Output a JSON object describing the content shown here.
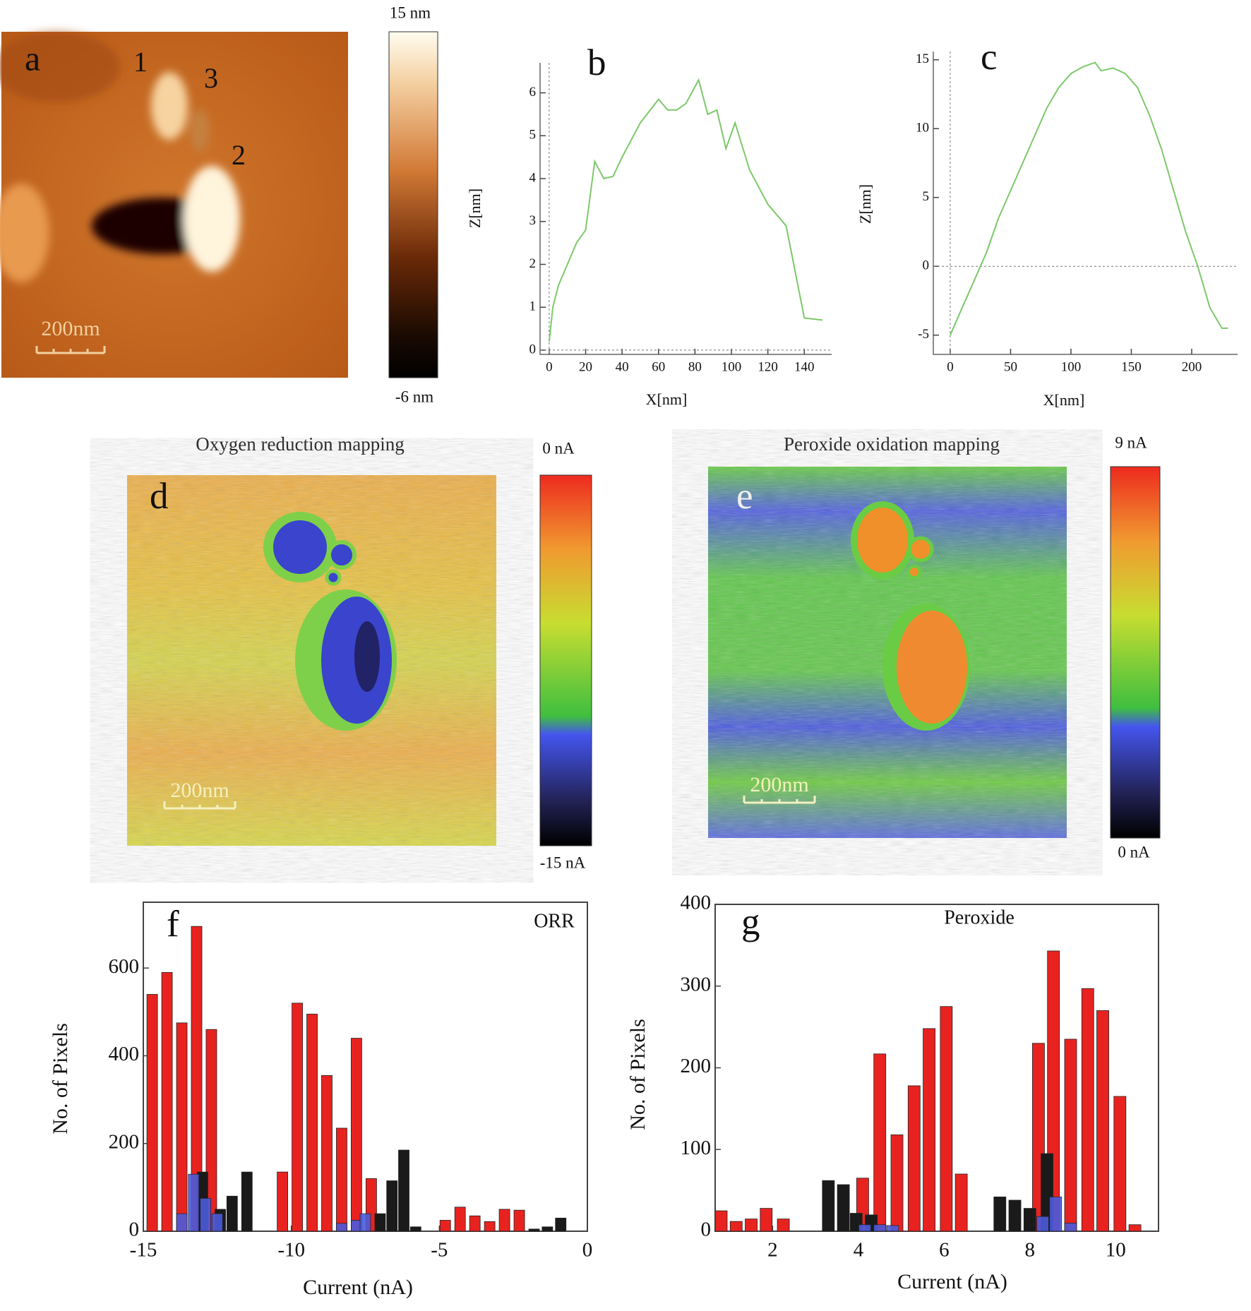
{
  "chart_data": [
    {
      "type": "image",
      "panel": "a",
      "annotations": [
        "1",
        "3",
        "2"
      ],
      "scale_bar": "200nm",
      "colorbar": {
        "top": "15 nm",
        "bottom": "-6 nm"
      }
    },
    {
      "type": "line",
      "panel": "b",
      "color": "#7cc86a",
      "x": [
        0,
        2,
        5,
        10,
        15,
        20,
        25,
        30,
        35,
        40,
        50,
        60,
        65,
        70,
        75,
        82,
        87,
        92,
        97,
        102,
        110,
        120,
        130,
        140,
        150
      ],
      "values": [
        0.2,
        1,
        1.5,
        2,
        2.5,
        2.8,
        4.4,
        4.0,
        4.05,
        4.5,
        5.3,
        5.85,
        5.6,
        5.6,
        5.75,
        6.3,
        5.5,
        5.6,
        4.7,
        5.3,
        4.2,
        3.4,
        2.9,
        0.75,
        0.7
      ],
      "xlim": [
        -5,
        155
      ],
      "ylim": [
        -0.1,
        6.7
      ],
      "xticks": [
        0,
        20,
        40,
        60,
        80,
        100,
        120,
        140
      ],
      "yticks": [
        0,
        1,
        2,
        3,
        4,
        5,
        6
      ],
      "xlabel": "X[nm]",
      "ylabel": "Z[nm]"
    },
    {
      "type": "line",
      "panel": "c",
      "color": "#7cc86a",
      "x": [
        0,
        10,
        20,
        30,
        40,
        50,
        60,
        70,
        80,
        90,
        100,
        110,
        120,
        125,
        135,
        145,
        155,
        165,
        175,
        185,
        195,
        205,
        215,
        225,
        230
      ],
      "values": [
        -5,
        -3,
        -1,
        1,
        3.5,
        5.5,
        7.5,
        9.5,
        11.5,
        13,
        14,
        14.5,
        14.8,
        14.2,
        14.4,
        14,
        13,
        11,
        8.5,
        5.5,
        2.5,
        0,
        -3,
        -4.5,
        -4.5
      ],
      "xlim": [
        -14,
        238
      ],
      "ylim": [
        -6.4,
        15.6
      ],
      "xticks": [
        0,
        50,
        100,
        150,
        200
      ],
      "yticks": [
        -5,
        0,
        5,
        10,
        15
      ],
      "xlabel": "X[nm]",
      "ylabel": "Z[nm]"
    },
    {
      "type": "image",
      "panel": "d",
      "title": "Oxygen reduction mapping",
      "scale_bar": "200nm",
      "colorbar": {
        "top": "0 nA",
        "bottom": "-15 nA"
      }
    },
    {
      "type": "image",
      "panel": "e",
      "title": "Peroxide oxidation mapping",
      "scale_bar": "200nm",
      "colorbar": {
        "top": "9 nA",
        "bottom": "0 nA"
      }
    },
    {
      "type": "bar",
      "panel": "f",
      "annotation": "ORR",
      "series": [
        {
          "color": "#e8231f",
          "x": [
            -14.7,
            -14.2,
            -13.7,
            -13.2,
            -12.7,
            -10.3,
            -9.8,
            -9.3,
            -8.8,
            -8.3,
            -7.8,
            -7.3,
            -4.8,
            -4.3,
            -3.8,
            -3.3,
            -2.8,
            -2.3
          ],
          "values": [
            540,
            590,
            475,
            695,
            460,
            135,
            520,
            495,
            355,
            235,
            440,
            120,
            25,
            55,
            35,
            22,
            50,
            48
          ]
        },
        {
          "color": "#1a1a1a",
          "x": [
            -13.0,
            -12.4,
            -12.0,
            -11.5,
            -7.0,
            -6.6,
            -6.2,
            -5.8,
            -1.8,
            -1.35,
            -0.9
          ],
          "values": [
            135,
            50,
            80,
            135,
            40,
            115,
            185,
            10,
            5,
            10,
            30
          ]
        },
        {
          "color": "#4b5bdc",
          "x": [
            -13.7,
            -13.3,
            -12.9,
            -12.5,
            -8.3,
            -7.8,
            -7.5
          ],
          "values": [
            40,
            130,
            75,
            40,
            18,
            25,
            40
          ]
        }
      ],
      "xlim": [
        -15,
        0
      ],
      "ylim": [
        0,
        750
      ],
      "xticks": [
        -15,
        -10,
        -5,
        0
      ],
      "yticks": [
        0,
        200,
        400,
        600
      ],
      "xlabel": "Current (nA)",
      "ylabel": "No. of Pixels"
    },
    {
      "type": "bar",
      "panel": "g",
      "annotation": "Peroxide",
      "series": [
        {
          "color": "#e8231f",
          "x": [
            0.8,
            1.15,
            1.5,
            1.85,
            2.25,
            4.1,
            4.5,
            4.9,
            5.3,
            5.65,
            6.05,
            6.4,
            8.2,
            8.55,
            8.95,
            9.35,
            9.7,
            10.1,
            10.45
          ],
          "values": [
            25,
            12,
            15,
            28,
            15,
            65,
            217,
            118,
            178,
            248,
            275,
            70,
            230,
            343,
            235,
            297,
            270,
            165,
            8
          ]
        },
        {
          "color": "#1a1a1a",
          "x": [
            3.3,
            3.65,
            3.95,
            4.3,
            7.3,
            7.65,
            8.0,
            8.4
          ],
          "values": [
            62,
            57,
            22,
            20,
            42,
            38,
            28,
            95
          ]
        },
        {
          "color": "#4b5bdc",
          "x": [
            4.15,
            4.5,
            4.8,
            8.3,
            8.6,
            8.95
          ],
          "values": [
            8,
            8,
            7,
            18,
            42,
            10
          ]
        }
      ],
      "xlim": [
        0.66,
        11
      ],
      "ylim": [
        0,
        400
      ],
      "xticks": [
        2,
        4,
        6,
        8,
        10
      ],
      "yticks": [
        0,
        100,
        200,
        300,
        400
      ],
      "xlabel": "Current (nA)",
      "ylabel": "No. of Pixels"
    }
  ]
}
